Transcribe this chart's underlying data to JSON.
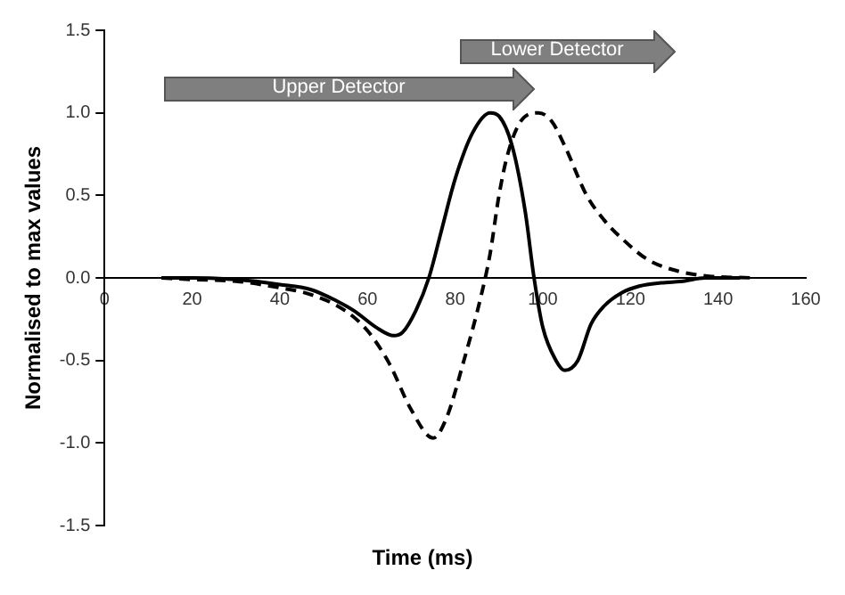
{
  "chart_data": {
    "type": "line",
    "xlabel": "Time (ms)",
    "ylabel": "Normalised to max values",
    "xlim": [
      0,
      160
    ],
    "xticks": [
      0,
      20,
      40,
      60,
      80,
      100,
      120,
      140,
      160
    ],
    "ylim": [
      -1.5,
      1.5
    ],
    "yticks": [
      -1.5,
      {
        "value": -1,
        "label": "-1.0"
      },
      -0.5,
      {
        "value": 0,
        "label": "0.0"
      },
      0.5,
      {
        "value": 1,
        "label": "1.0"
      },
      1.5
    ],
    "grid": false,
    "legend": false,
    "marker": "none",
    "annotations": [
      "Upper Detector",
      "Lower Detector"
    ],
    "series": [
      {
        "color": "#000000",
        "line_style": "solid",
        "x": [
          13,
          20,
          30,
          40,
          47,
          53,
          57,
          62,
          66,
          68,
          71,
          74,
          77,
          80,
          84,
          88,
          90,
          93,
          96,
          98,
          100,
          103,
          105,
          108,
          111,
          114,
          118,
          122,
          127,
          132,
          137,
          145
        ],
        "values": [
          0,
          0,
          -0.01,
          -0.04,
          -0.07,
          -0.14,
          -0.2,
          -0.3,
          -0.35,
          -0.33,
          -0.2,
          0,
          0.3,
          0.6,
          0.88,
          1.0,
          0.98,
          0.8,
          0.4,
          0,
          -0.3,
          -0.5,
          -0.56,
          -0.5,
          -0.28,
          -0.17,
          -0.09,
          -0.05,
          -0.03,
          -0.02,
          0,
          0
        ]
      },
      {
        "color": "#000000",
        "line_style": "dashed",
        "x": [
          13,
          20,
          30,
          40,
          47,
          55,
          60,
          65,
          70,
          75,
          78,
          82,
          86,
          88,
          90,
          92,
          95,
          99,
          102,
          105,
          110,
          114,
          118,
          124,
          131,
          138,
          148
        ],
        "values": [
          0,
          -0.01,
          -0.02,
          -0.06,
          -0.1,
          -0.2,
          -0.32,
          -0.52,
          -0.8,
          -0.97,
          -0.85,
          -0.5,
          -0.1,
          0.15,
          0.5,
          0.75,
          0.95,
          1.0,
          0.95,
          0.8,
          0.5,
          0.35,
          0.24,
          0.11,
          0.04,
          0.01,
          0
        ]
      }
    ]
  }
}
